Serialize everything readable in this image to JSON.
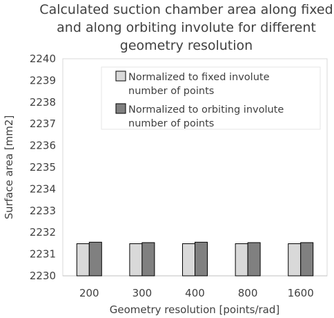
{
  "chart_data": {
    "type": "bar",
    "title_lines": [
      "Calculated suction chamber area along fixed",
      "and along orbiting involute for different",
      "geometry resolution"
    ],
    "xlabel": "Geometry resolution [points/rad]",
    "ylabel": "Surface area [mm2]",
    "categories": [
      "200",
      "300",
      "400",
      "800",
      "1600"
    ],
    "ylim": [
      2230,
      2240
    ],
    "yticks": [
      "2230",
      "2231",
      "2232",
      "2233",
      "2234",
      "2235",
      "2236",
      "2237",
      "2238",
      "2239",
      "2240"
    ],
    "grid": false,
    "legend_position": "top-right inside plot",
    "series": [
      {
        "legend_lines": [
          "Normalized to fixed involute",
          "number of points"
        ],
        "color": "#d9d9d9",
        "values": [
          2231.48,
          2231.48,
          2231.48,
          2231.48,
          2231.48
        ]
      },
      {
        "legend_lines": [
          "Normalized to orbiting involute",
          "number of points"
        ],
        "color": "#808080",
        "values": [
          2231.55,
          2231.53,
          2231.55,
          2231.53,
          2231.53
        ]
      }
    ]
  }
}
